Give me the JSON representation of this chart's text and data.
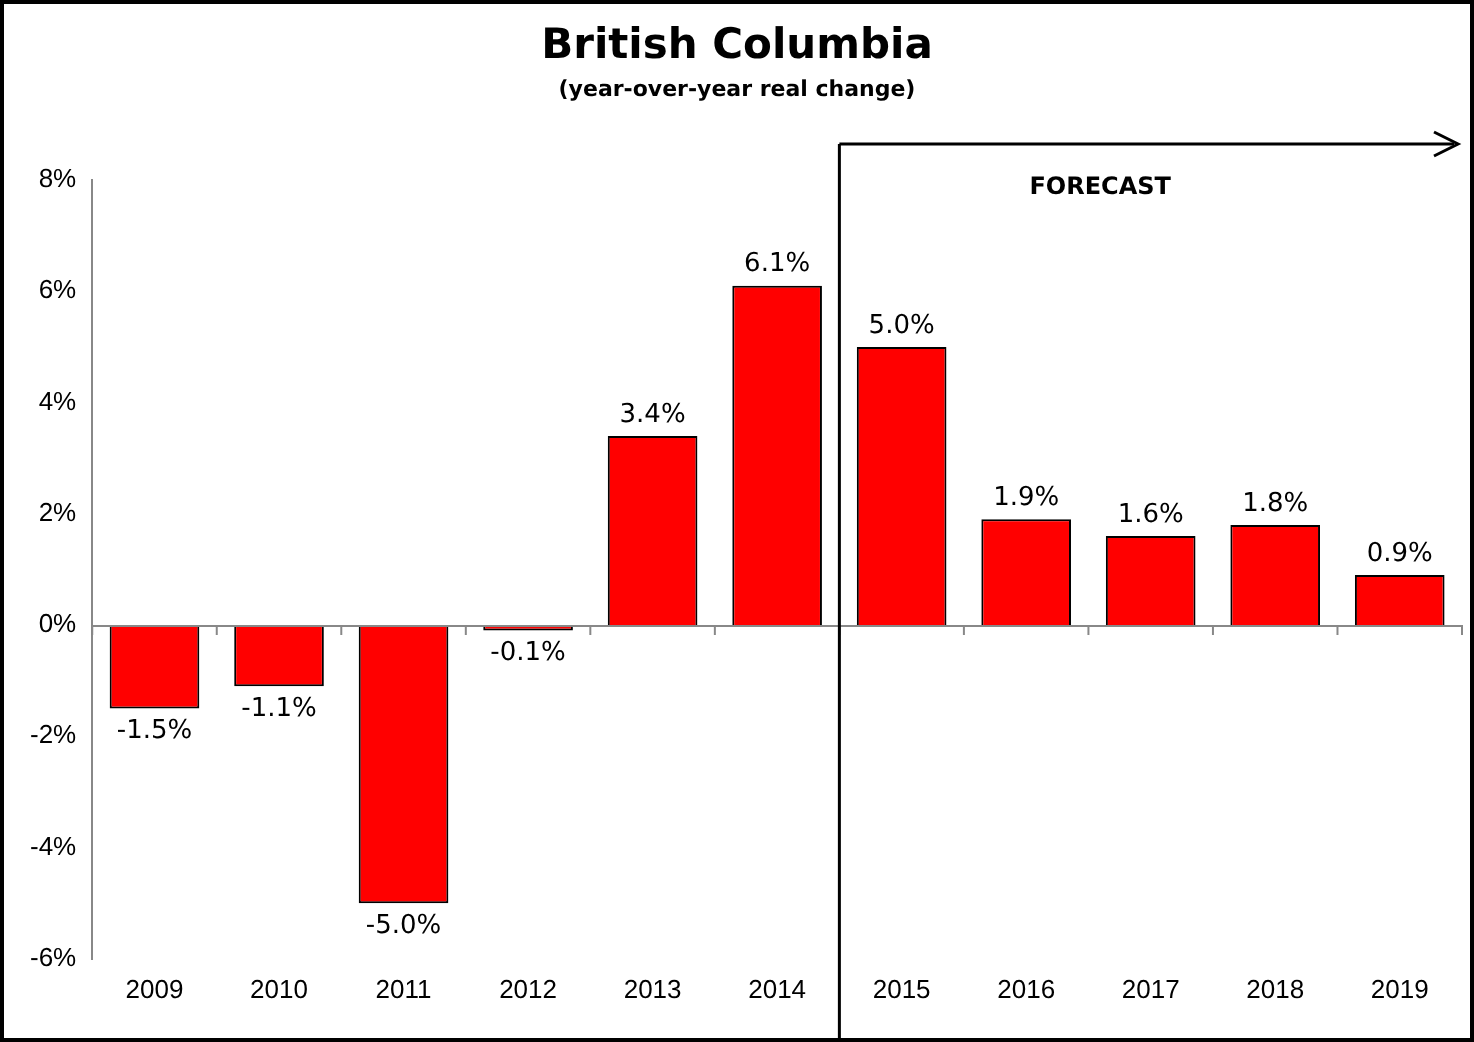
{
  "chart_data": {
    "type": "bar",
    "title": "British Columbia",
    "subtitle": "(year-over-year real change)",
    "categories": [
      "2009",
      "2010",
      "2011",
      "2012",
      "2013",
      "2014",
      "2015",
      "2016",
      "2017",
      "2018",
      "2019"
    ],
    "values": [
      -1.5,
      -1.1,
      -5.0,
      -0.1,
      3.4,
      6.1,
      5.0,
      1.9,
      1.6,
      1.8,
      0.9
    ],
    "value_labels": [
      "-1.5%",
      "-1.1%",
      "-5.0%",
      "-0.1%",
      "3.4%",
      "6.1%",
      "5.0%",
      "1.9%",
      "1.6%",
      "1.8%",
      "0.9%"
    ],
    "color": "#ff0000",
    "ylim": [
      -6,
      8
    ],
    "yticks": [
      {
        "value": -6,
        "label": "-6%"
      },
      {
        "value": -4,
        "label": "-4%"
      },
      {
        "value": -2,
        "label": "-2%"
      },
      {
        "value": 0,
        "label": "0%"
      },
      {
        "value": 2,
        "label": "2%"
      },
      {
        "value": 4,
        "label": "4%"
      },
      {
        "value": 6,
        "label": "6%"
      },
      {
        "value": 8,
        "label": "8%"
      }
    ],
    "grid": false,
    "legend": false,
    "ref_lines": [
      {
        "axis": "x",
        "value": "2015",
        "label": "FORECAST"
      }
    ]
  }
}
